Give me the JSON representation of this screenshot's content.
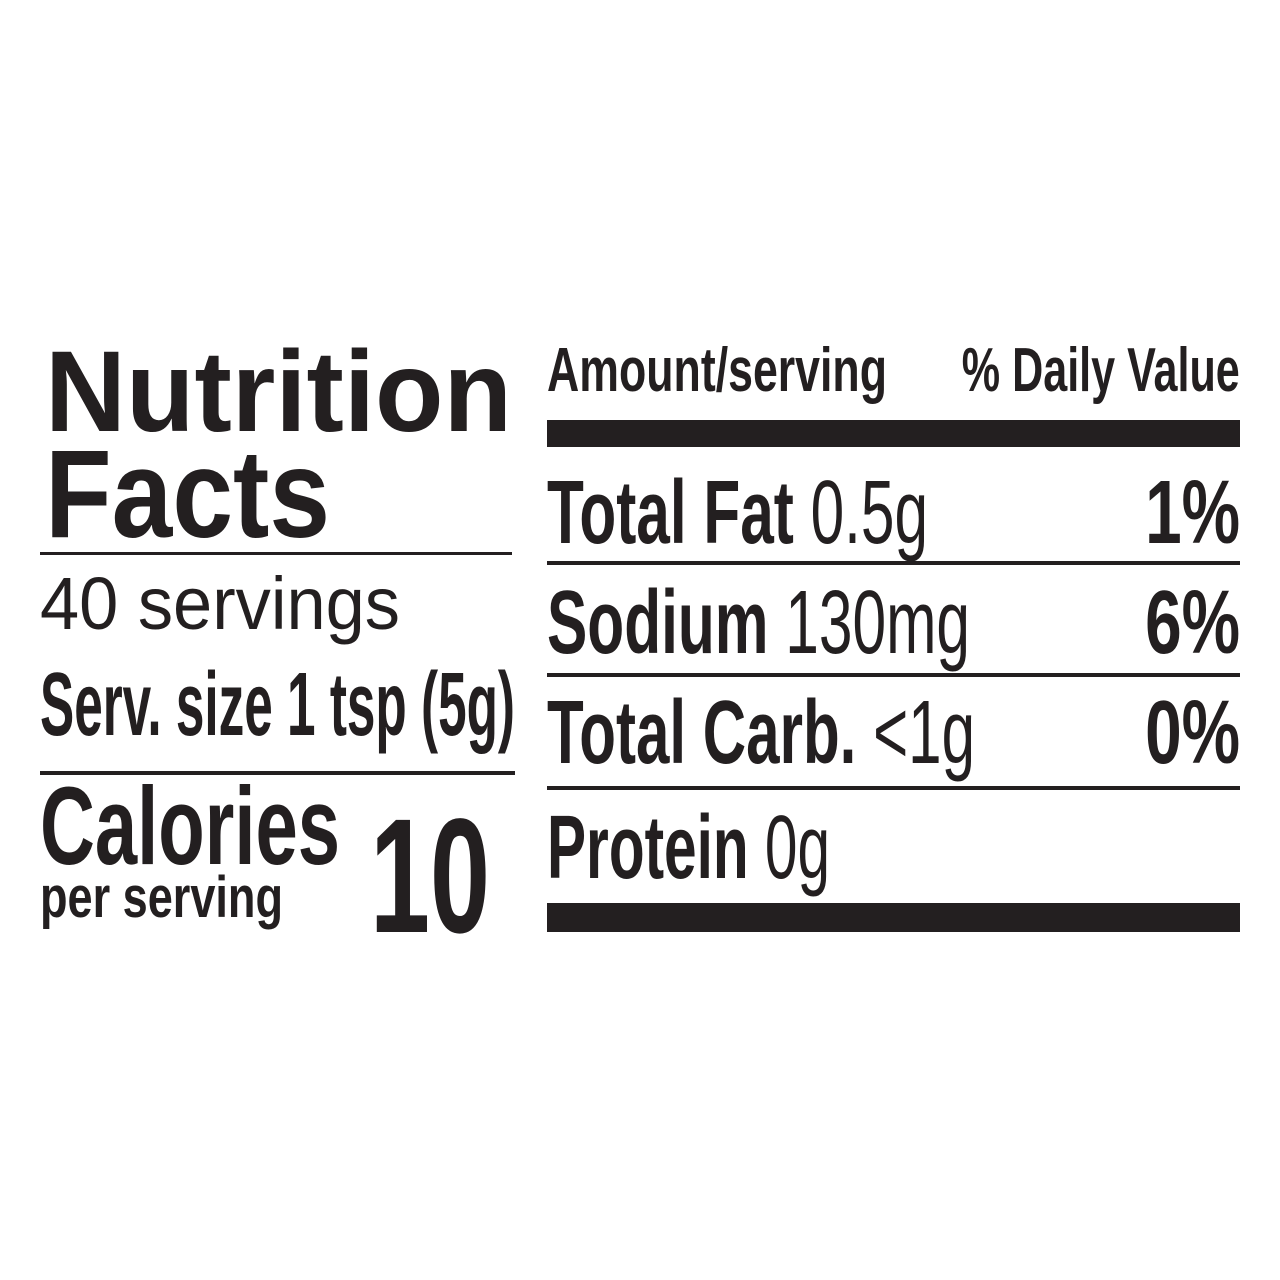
{
  "label": {
    "title_line1": "Nutrition",
    "title_line2": "Facts",
    "servings": "40 servings",
    "serving_size": "Serv. size 1 tsp (5g)",
    "calories_label": "Calories",
    "calories_sub": "per serving",
    "calories_value": "10",
    "header_amount": "Amount/serving",
    "header_dv": "% Daily Value",
    "nutrients": [
      {
        "name": "Total Fat",
        "amount": "0.5g",
        "dv": "1%"
      },
      {
        "name": "Sodium",
        "amount": "130mg",
        "dv": "6%"
      },
      {
        "name": "Total Carb.",
        "amount": "<1g",
        "dv": "0%"
      },
      {
        "name": "Protein",
        "amount": "0g",
        "dv": ""
      }
    ]
  },
  "colors": {
    "ink": "#231f20",
    "background": "#ffffff"
  }
}
